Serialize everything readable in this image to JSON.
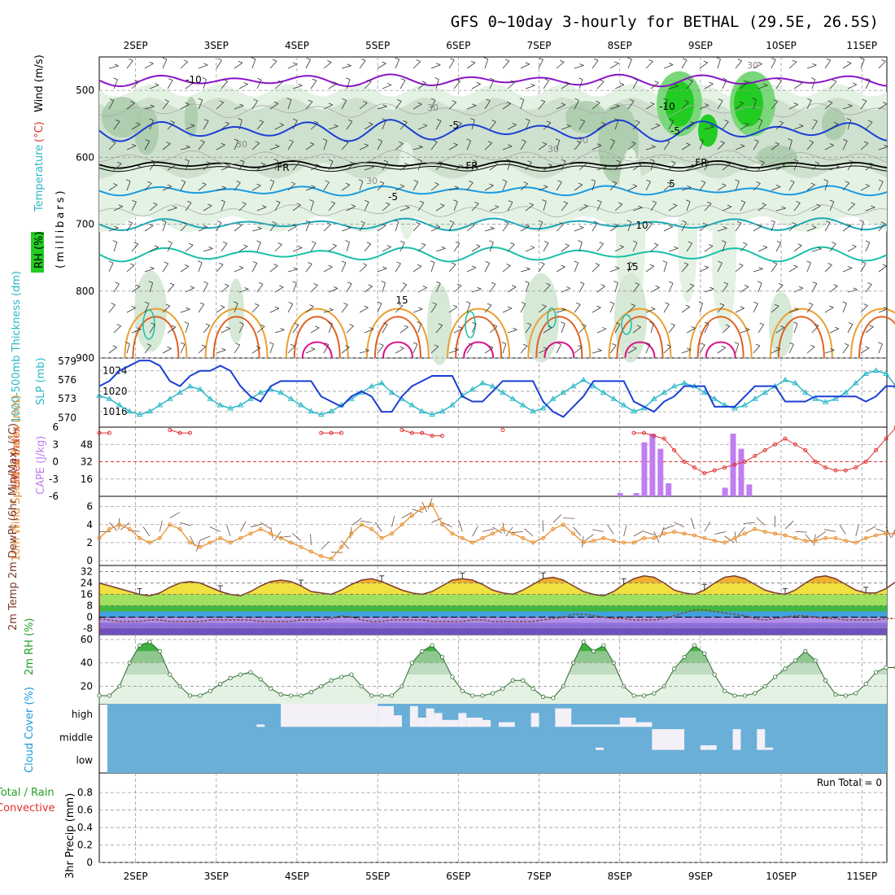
{
  "title": "GFS 0~10day 3-hourly for BETHAL (29.5E, 26.5S)",
  "colors": {
    "panel_blue": "#6aafd8",
    "purple": "#8a14c8",
    "blue": "#1a3fd6",
    "light_blue": "#1a9be0",
    "teal": "#18c0a8",
    "orange": "#e8a030",
    "dark_orange": "#e06020",
    "magenta": "#e0108a",
    "rh_light": "#e4f2e4",
    "rh_mid": "#a8c8a8",
    "rh_dark": "#5a7a5a",
    "rh_green": "#22cc22",
    "cape": "#c07ef0",
    "lifted": "#e03030",
    "wind": "#e89030",
    "cyan": "#2ab8c8",
    "slp": "#1a3fd6"
  },
  "chart_data": [
    {
      "type": "contour",
      "name_panel": "upper-air",
      "days": [
        "2SEP",
        "3SEP",
        "4SEP",
        "5SEP",
        "6SEP",
        "7SEP",
        "8SEP",
        "9SEP",
        "10SEP",
        "11SEP"
      ],
      "ylabel_parts": [
        "RH (%)",
        "Temperature",
        "(°C)",
        "Wind (m/s)",
        "(millibars)"
      ],
      "y_ticks": [
        "500",
        "600",
        "700",
        "800",
        "900"
      ],
      "ylim": [
        450,
        900
      ],
      "contour_labels": [
        "-10",
        "-10",
        "-5",
        "-5",
        "FR",
        "FR",
        "FR",
        "-5",
        "5",
        "10",
        "15",
        "15",
        "30",
        "30",
        "30",
        "30",
        "50",
        "30"
      ],
      "freezing_level": {
        "label": "FR",
        "pressure": 610
      },
      "isotherms": [
        {
          "label": "-10",
          "pressure": 485
        },
        {
          "label": "-5",
          "pressure": 560
        },
        {
          "label": "5",
          "pressure": 645
        },
        {
          "label": "10",
          "pressure": 700
        },
        {
          "label": "15",
          "pressure": 745
        }
      ]
    },
    {
      "type": "line",
      "name_panel": "slp-thickness",
      "ylabel_left": "1000-500mb Thickness (dm)",
      "ylabel_right": "SLP (mb)",
      "y_ticks_left": [
        "570",
        "573",
        "576",
        "579"
      ],
      "y_ticks_right": [
        "1016",
        "1020",
        "1024"
      ],
      "series": [
        {
          "name": "SLP",
          "unit": "mb",
          "values": [
            1021,
            1022,
            1024,
            1025,
            1026,
            1026,
            1025,
            1022,
            1021,
            1023,
            1024,
            1024,
            1025,
            1024,
            1021,
            1019,
            1018,
            1021,
            1022,
            1022,
            1022,
            1022,
            1019,
            1018,
            1017,
            1019,
            1020,
            1019,
            1016,
            1016,
            1019,
            1021,
            1022,
            1023,
            1023,
            1023,
            1019,
            1018,
            1018,
            1020,
            1022,
            1022,
            1022,
            1022,
            1018,
            1016,
            1015,
            1017,
            1019,
            1022,
            1022,
            1022,
            1022,
            1018,
            1017,
            1016,
            1018,
            1019,
            1021,
            1021,
            1021,
            1017,
            1017,
            1017,
            1019,
            1021,
            1021,
            1021,
            1018,
            1018,
            1018,
            1019,
            1019,
            1019,
            1019,
            1019,
            1018,
            1019,
            1021,
            1021,
            1021,
            1021,
            1021,
            1018,
            1021
          ]
        },
        {
          "name": "Thickness",
          "unit": "dm",
          "values": [
            573.5,
            573,
            572,
            571,
            570.5,
            571,
            572,
            573,
            574,
            575,
            574.5,
            573,
            572,
            571.5,
            572,
            573,
            574,
            574.5,
            574,
            573,
            572,
            571,
            570.5,
            571,
            572,
            573,
            574,
            575,
            575.5,
            574,
            573,
            572,
            571,
            570.5,
            571,
            572,
            573.5,
            574.5,
            575.5,
            575,
            574,
            573,
            572,
            571,
            571.5,
            573,
            574,
            575,
            576,
            575,
            574,
            573,
            572,
            571,
            571.5,
            573,
            574,
            575,
            575.5,
            575,
            574,
            573,
            572,
            571.5,
            572,
            573,
            574,
            575,
            576,
            575.5,
            574,
            573,
            572.5,
            573,
            574,
            575.5,
            577,
            577.5,
            577,
            575,
            574,
            573,
            573.5,
            574.5,
            574
          ]
        }
      ]
    },
    {
      "type": "bar",
      "name_panel": "cape-li",
      "ylabel_left": "Lifted Index",
      "ylabel_right": "CAPE (J/kg)",
      "y_ticks_left": [
        "6",
        "3",
        "0",
        "-3",
        "-6"
      ],
      "y_ticks_right": [
        "16",
        "32",
        "48"
      ],
      "cape_values": [
        0,
        0,
        0,
        0,
        0,
        0,
        0,
        0,
        0,
        0,
        0,
        0,
        0,
        0,
        0,
        0,
        0,
        0,
        0,
        0,
        0,
        0,
        0,
        0,
        0,
        0,
        0,
        0,
        0,
        0,
        0,
        0,
        0,
        0,
        0,
        0,
        0,
        0,
        0,
        0,
        0,
        0,
        0,
        0,
        0,
        0,
        0,
        0,
        0,
        0,
        0,
        0,
        0,
        0,
        0,
        0,
        0,
        0,
        0,
        0,
        0,
        0,
        0,
        0,
        0,
        0,
        0,
        0,
        0,
        0,
        0,
        0,
        0,
        0,
        0,
        0,
        0,
        0,
        0,
        0,
        0,
        0,
        0,
        0,
        0
      ],
      "cape_bars": [
        [
          8.0,
          3
        ],
        [
          8.2,
          3
        ],
        [
          8.3,
          50
        ],
        [
          8.4,
          58
        ],
        [
          8.5,
          44
        ],
        [
          8.6,
          12
        ],
        [
          9.3,
          8
        ],
        [
          9.4,
          58
        ],
        [
          9.5,
          44
        ],
        [
          9.6,
          11
        ]
      ],
      "li_values": [
        5,
        5,
        null,
        null,
        null,
        null,
        null,
        5.5,
        5,
        5,
        null,
        null,
        null,
        null,
        null,
        null,
        null,
        null,
        null,
        null,
        null,
        null,
        5,
        5,
        5,
        null,
        null,
        null,
        null,
        null,
        5.5,
        5,
        5,
        4.5,
        4.5,
        null,
        null,
        null,
        null,
        null,
        5.5,
        null,
        null,
        null,
        null,
        null,
        null,
        null,
        null,
        null,
        null,
        null,
        null,
        5,
        5,
        4.5,
        4,
        2,
        0,
        -1,
        -2,
        -1.5,
        -1,
        -0.5,
        0,
        1,
        2,
        3,
        4,
        3,
        2,
        0,
        -1,
        -1.5,
        -1.5,
        -1,
        0,
        2,
        4,
        6,
        null,
        null,
        null,
        null,
        null
      ]
    },
    {
      "type": "line",
      "name_panel": "wind",
      "ylabel": "10m Wind Speed & Barbs (m/s)",
      "y_ticks": [
        "0",
        "2",
        "4",
        "6"
      ],
      "values": [
        2.5,
        3.5,
        4,
        3.5,
        2.5,
        2,
        2.5,
        4,
        3.5,
        2,
        1.5,
        2,
        2.5,
        2,
        2.5,
        3,
        3.5,
        3,
        2.5,
        2,
        1.5,
        1,
        0.5,
        0.2,
        1.5,
        3,
        4,
        3.5,
        2.5,
        3,
        4,
        5,
        5.8,
        6.2,
        4,
        3,
        2.5,
        2,
        2.5,
        3,
        3.5,
        3,
        2.5,
        2,
        2.5,
        3.5,
        4,
        3,
        2,
        2.2,
        2.5,
        2.2,
        2,
        2,
        2.5,
        2.5,
        3,
        3.2,
        3,
        2.8,
        2.5,
        2.2,
        2,
        2.5,
        3,
        3.5,
        3.2,
        3,
        2.8,
        2.5,
        2.2,
        2.2,
        2.5,
        2.5,
        2.2,
        2,
        2.5,
        2.8,
        3,
        3,
        2.8,
        2.5,
        2.2,
        2.5,
        2.5
      ]
    },
    {
      "type": "area",
      "name_panel": "temperature",
      "ylabel": "2m Temp 2m DewPt (6hr Min/Max) (°C)",
      "y_ticks": [
        "-8",
        "0",
        "8",
        "16",
        "24",
        "32"
      ],
      "temp": [
        24,
        22,
        20,
        18,
        16,
        15,
        17,
        21,
        24,
        25,
        24,
        21,
        18,
        16,
        15,
        18,
        22,
        25,
        26,
        25,
        22,
        18,
        17,
        16,
        19,
        23,
        26,
        27,
        25,
        22,
        19,
        17,
        16,
        18,
        22,
        26,
        27,
        26,
        23,
        19,
        17,
        16,
        19,
        23,
        27,
        28,
        26,
        22,
        18,
        16,
        15,
        18,
        23,
        27,
        29,
        28,
        24,
        19,
        17,
        16,
        19,
        24,
        28,
        29,
        27,
        23,
        19,
        17,
        16,
        19,
        24,
        28,
        29,
        27,
        23,
        19,
        17,
        17,
        20,
        25,
        30,
        29,
        26,
        20,
        20
      ],
      "dewpoint": [
        -1,
        -2,
        -3,
        -3,
        -3,
        -2,
        -2,
        -3,
        -3,
        -3,
        -3,
        -2,
        -2,
        -2,
        -2,
        -2,
        -3,
        -3,
        -3,
        -3,
        -2,
        -2,
        -2,
        -1,
        1,
        0,
        -2,
        -3,
        -3,
        -2,
        -2,
        -2,
        -2,
        -3,
        -3,
        -3,
        -3,
        -2,
        -2,
        -3,
        -3,
        -3,
        -3,
        -3,
        -2,
        -1,
        0,
        2,
        2,
        1,
        0,
        -1,
        -1,
        -2,
        -2,
        -2,
        -1,
        1,
        3,
        5,
        5,
        4,
        3,
        2,
        1,
        -1,
        -2,
        -1,
        0,
        1,
        1,
        0,
        -1,
        -1,
        -2,
        -2,
        -2,
        -2,
        -1,
        -1,
        -1,
        -1,
        -1,
        -1,
        -1
      ]
    },
    {
      "type": "area",
      "name_panel": "rh",
      "ylabel": "2m RH (%)",
      "y_ticks": [
        "20",
        "40",
        "60"
      ],
      "values": [
        12,
        12,
        20,
        40,
        55,
        58,
        50,
        30,
        20,
        12,
        12,
        16,
        22,
        27,
        30,
        32,
        26,
        18,
        13,
        12,
        12,
        15,
        20,
        25,
        28,
        30,
        20,
        12,
        12,
        12,
        20,
        40,
        50,
        55,
        45,
        28,
        16,
        12,
        12,
        14,
        18,
        25,
        25,
        18,
        11,
        10,
        20,
        40,
        58,
        50,
        55,
        40,
        20,
        12,
        12,
        14,
        20,
        35,
        45,
        55,
        48,
        30,
        16,
        12,
        12,
        14,
        20,
        28,
        35,
        42,
        50,
        42,
        25,
        13,
        12,
        14,
        22,
        32,
        36,
        36,
        25,
        14,
        12,
        12,
        14,
        18,
        22,
        26,
        22
      ]
    },
    {
      "type": "heatmap",
      "name_panel": "cloud",
      "ylabel": "Cloud Cover (%)",
      "y_ticks": [
        "high",
        "middle",
        "low"
      ],
      "high": [
        [
          3.5,
          3.6,
          0.1
        ],
        [
          3.8,
          5.0,
          1.0
        ],
        [
          5.0,
          5.2,
          0.9
        ],
        [
          5.2,
          5.3,
          0.5
        ],
        [
          5.4,
          5.5,
          0.9
        ],
        [
          5.5,
          5.6,
          0.4
        ],
        [
          5.6,
          5.7,
          0.8
        ],
        [
          5.7,
          5.8,
          0.6
        ],
        [
          5.8,
          6.0,
          0.3
        ],
        [
          6.0,
          6.1,
          0.6
        ],
        [
          6.1,
          6.3,
          0.4
        ],
        [
          6.3,
          6.4,
          0.3
        ],
        [
          6.5,
          6.7,
          0.2
        ],
        [
          6.9,
          7.0,
          0.6
        ],
        [
          7.2,
          7.4,
          0.8
        ],
        [
          7.4,
          8.0,
          0.1
        ],
        [
          8.0,
          8.2,
          0.4
        ],
        [
          8.2,
          8.4,
          0.2
        ]
      ],
      "middle": [
        [
          7.7,
          7.8,
          0.1
        ],
        [
          8.4,
          8.8,
          0.9
        ],
        [
          9.0,
          9.1,
          0.2
        ],
        [
          9.1,
          9.2,
          0.2
        ],
        [
          9.4,
          9.5,
          0.9
        ],
        [
          9.7,
          9.8,
          0.9
        ],
        [
          9.8,
          9.9,
          0.1
        ]
      ]
    },
    {
      "type": "line",
      "name_panel": "precip",
      "ylabel_left": "Total / Rain",
      "ylabel_left2": "Convective",
      "ylabel": "3hr Precip (mm)",
      "y_ticks": [
        "0",
        "0.2",
        "0.4",
        "0.6",
        "0.8"
      ],
      "run_total": "Run Total = 0"
    }
  ]
}
